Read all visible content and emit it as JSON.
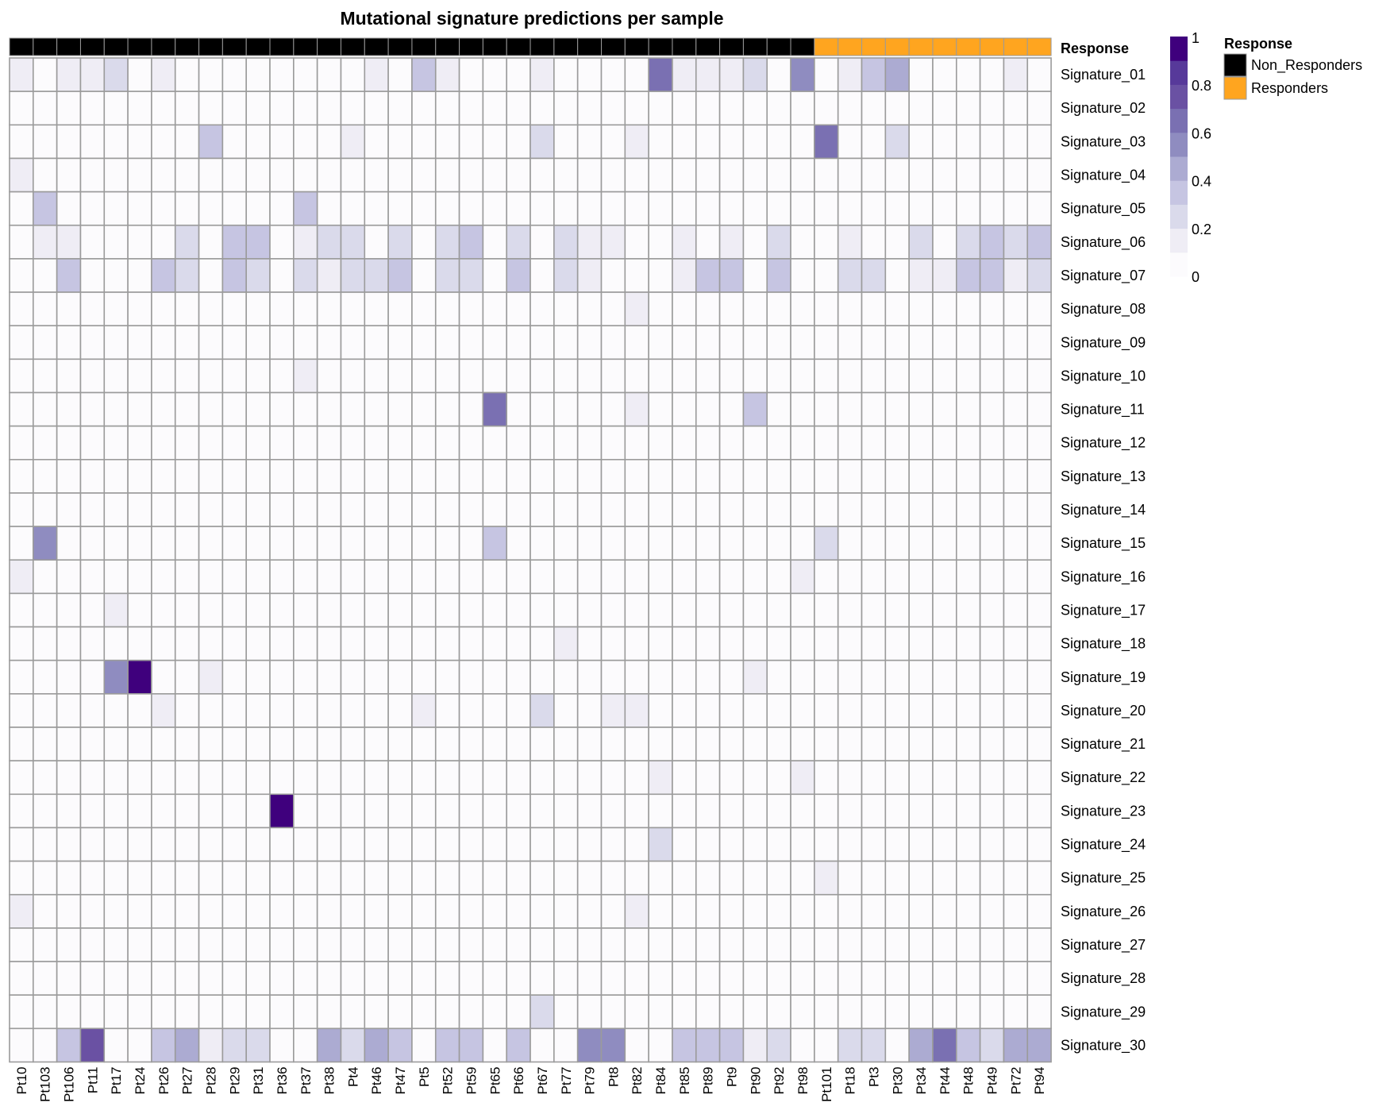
{
  "chart_data": {
    "type": "heatmap",
    "title": "Mutational signature predictions per sample",
    "annotation": {
      "label": "Response",
      "legend_title": "Response",
      "groups": [
        {
          "name": "Non_Responders",
          "color": "#000000"
        },
        {
          "name": "Responders",
          "color": "#FFA51F"
        }
      ],
      "assignment": [
        "Non_Responders",
        "Non_Responders",
        "Non_Responders",
        "Non_Responders",
        "Non_Responders",
        "Non_Responders",
        "Non_Responders",
        "Non_Responders",
        "Non_Responders",
        "Non_Responders",
        "Non_Responders",
        "Non_Responders",
        "Non_Responders",
        "Non_Responders",
        "Non_Responders",
        "Non_Responders",
        "Non_Responders",
        "Non_Responders",
        "Non_Responders",
        "Non_Responders",
        "Non_Responders",
        "Non_Responders",
        "Non_Responders",
        "Non_Responders",
        "Non_Responders",
        "Non_Responders",
        "Non_Responders",
        "Non_Responders",
        "Non_Responders",
        "Non_Responders",
        "Non_Responders",
        "Non_Responders",
        "Non_Responders",
        "Non_Responders",
        "Responders",
        "Responders",
        "Responders",
        "Responders",
        "Responders",
        "Responders",
        "Responders",
        "Responders",
        "Responders",
        "Responders"
      ]
    },
    "columns": [
      "Pt10",
      "Pt103",
      "Pt106",
      "Pt11",
      "Pt17",
      "Pt24",
      "Pt26",
      "Pt27",
      "Pt28",
      "Pt29",
      "Pt31",
      "Pt36",
      "Pt37",
      "Pt38",
      "Pt4",
      "Pt46",
      "Pt47",
      "Pt5",
      "Pt52",
      "Pt59",
      "Pt65",
      "Pt66",
      "Pt67",
      "Pt77",
      "Pt79",
      "Pt8",
      "Pt82",
      "Pt84",
      "Pt85",
      "Pt89",
      "Pt9",
      "Pt90",
      "Pt92",
      "Pt98",
      "Pt101",
      "Pt18",
      "Pt3",
      "Pt30",
      "Pt34",
      "Pt44",
      "Pt48",
      "Pt49",
      "Pt72",
      "Pt94"
    ],
    "rows": [
      "Signature_01",
      "Signature_02",
      "Signature_03",
      "Signature_04",
      "Signature_05",
      "Signature_06",
      "Signature_07",
      "Signature_08",
      "Signature_09",
      "Signature_10",
      "Signature_11",
      "Signature_12",
      "Signature_13",
      "Signature_14",
      "Signature_15",
      "Signature_16",
      "Signature_17",
      "Signature_18",
      "Signature_19",
      "Signature_20",
      "Signature_21",
      "Signature_22",
      "Signature_23",
      "Signature_24",
      "Signature_25",
      "Signature_26",
      "Signature_27",
      "Signature_28",
      "Signature_29",
      "Signature_30"
    ],
    "values": [
      [
        0.15,
        0,
        0.15,
        0.15,
        0.2,
        0,
        0.15,
        0,
        0,
        0,
        0,
        0,
        0,
        0,
        0,
        0.15,
        0,
        0.35,
        0.15,
        0,
        0,
        0,
        0.15,
        0,
        0,
        0,
        0,
        0.6,
        0.15,
        0.15,
        0.15,
        0.2,
        0,
        0.55,
        0,
        0.15,
        0.35,
        0.45,
        0,
        0,
        0,
        0,
        0.15,
        0
      ],
      [
        0,
        0,
        0,
        0,
        0,
        0,
        0,
        0,
        0,
        0,
        0,
        0,
        0,
        0,
        0,
        0,
        0,
        0,
        0,
        0,
        0,
        0,
        0,
        0,
        0,
        0,
        0,
        0,
        0,
        0,
        0,
        0,
        0,
        0,
        0,
        0,
        0,
        0,
        0,
        0,
        0,
        0,
        0,
        0
      ],
      [
        0,
        0,
        0,
        0,
        0,
        0,
        0,
        0,
        0.35,
        0,
        0,
        0,
        0,
        0,
        0.15,
        0,
        0,
        0,
        0,
        0,
        0,
        0,
        0.2,
        0,
        0,
        0,
        0.15,
        0,
        0,
        0,
        0,
        0,
        0,
        0,
        0.65,
        0,
        0,
        0.2,
        0,
        0,
        0,
        0,
        0,
        0
      ],
      [
        0.15,
        0,
        0,
        0,
        0,
        0,
        0,
        0,
        0,
        0,
        0,
        0,
        0,
        0,
        0,
        0,
        0,
        0,
        0,
        0,
        0,
        0,
        0,
        0,
        0,
        0,
        0,
        0,
        0,
        0,
        0,
        0,
        0,
        0,
        0,
        0,
        0,
        0,
        0,
        0,
        0,
        0,
        0,
        0
      ],
      [
        0,
        0.35,
        0,
        0,
        0,
        0,
        0,
        0,
        0,
        0,
        0,
        0,
        0.35,
        0,
        0,
        0,
        0,
        0,
        0,
        0,
        0,
        0,
        0,
        0,
        0,
        0,
        0,
        0,
        0,
        0,
        0,
        0,
        0,
        0,
        0,
        0,
        0,
        0,
        0,
        0,
        0,
        0,
        0,
        0
      ],
      [
        0,
        0.15,
        0.15,
        0,
        0,
        0,
        0,
        0.25,
        0,
        0.35,
        0.35,
        0,
        0.15,
        0.25,
        0.25,
        0,
        0.25,
        0,
        0.25,
        0.35,
        0,
        0.25,
        0,
        0.25,
        0.15,
        0.15,
        0,
        0,
        0.15,
        0,
        0.15,
        0,
        0.25,
        0,
        0,
        0.15,
        0,
        0,
        0.25,
        0,
        0.25,
        0.35,
        0.25,
        0.35
      ],
      [
        0,
        0,
        0.35,
        0,
        0,
        0,
        0.35,
        0.25,
        0,
        0.35,
        0.25,
        0,
        0.25,
        0.15,
        0.25,
        0.25,
        0.35,
        0,
        0.25,
        0.25,
        0,
        0.35,
        0,
        0.25,
        0.15,
        0,
        0,
        0,
        0.15,
        0.35,
        0.35,
        0,
        0.35,
        0,
        0,
        0.25,
        0.25,
        0,
        0.15,
        0.15,
        0.35,
        0.35,
        0.15,
        0.25
      ],
      [
        0,
        0,
        0,
        0,
        0,
        0,
        0,
        0,
        0,
        0,
        0,
        0,
        0,
        0,
        0,
        0,
        0,
        0,
        0,
        0,
        0,
        0,
        0,
        0,
        0,
        0,
        0.15,
        0,
        0,
        0,
        0,
        0,
        0,
        0,
        0,
        0,
        0,
        0,
        0,
        0,
        0,
        0,
        0,
        0
      ],
      [
        0,
        0,
        0,
        0,
        0,
        0,
        0,
        0,
        0,
        0,
        0,
        0,
        0,
        0,
        0,
        0,
        0,
        0,
        0,
        0,
        0,
        0,
        0,
        0,
        0,
        0,
        0,
        0,
        0,
        0,
        0,
        0,
        0,
        0,
        0,
        0,
        0,
        0,
        0,
        0,
        0,
        0,
        0,
        0
      ],
      [
        0,
        0,
        0,
        0,
        0,
        0,
        0,
        0,
        0,
        0,
        0,
        0,
        0.15,
        0,
        0,
        0,
        0,
        0,
        0,
        0,
        0,
        0,
        0,
        0,
        0,
        0,
        0,
        0,
        0,
        0,
        0,
        0,
        0,
        0,
        0,
        0,
        0,
        0,
        0,
        0,
        0,
        0,
        0,
        0
      ],
      [
        0,
        0,
        0,
        0,
        0,
        0,
        0,
        0,
        0,
        0,
        0,
        0,
        0,
        0,
        0,
        0,
        0,
        0,
        0,
        0,
        0.6,
        0,
        0,
        0,
        0,
        0,
        0.15,
        0,
        0,
        0,
        0,
        0.35,
        0,
        0,
        0,
        0,
        0,
        0,
        0,
        0,
        0,
        0,
        0,
        0
      ],
      [
        0,
        0,
        0,
        0,
        0,
        0,
        0,
        0,
        0,
        0,
        0,
        0,
        0,
        0,
        0,
        0,
        0,
        0,
        0,
        0,
        0,
        0,
        0,
        0,
        0,
        0,
        0,
        0,
        0,
        0,
        0,
        0,
        0,
        0,
        0,
        0,
        0,
        0,
        0,
        0,
        0,
        0,
        0,
        0
      ],
      [
        0,
        0,
        0,
        0,
        0,
        0,
        0,
        0,
        0,
        0,
        0,
        0,
        0,
        0,
        0,
        0,
        0,
        0,
        0,
        0,
        0,
        0,
        0,
        0,
        0,
        0,
        0,
        0,
        0,
        0,
        0,
        0,
        0,
        0,
        0,
        0,
        0,
        0,
        0,
        0,
        0,
        0,
        0,
        0
      ],
      [
        0,
        0,
        0,
        0,
        0,
        0,
        0,
        0,
        0,
        0,
        0,
        0,
        0,
        0,
        0,
        0,
        0,
        0,
        0,
        0,
        0,
        0,
        0,
        0,
        0,
        0,
        0,
        0,
        0,
        0,
        0,
        0,
        0,
        0,
        0,
        0,
        0,
        0,
        0,
        0,
        0,
        0,
        0,
        0
      ],
      [
        0,
        0.5,
        0,
        0,
        0,
        0,
        0,
        0,
        0,
        0,
        0,
        0,
        0,
        0,
        0,
        0,
        0,
        0,
        0,
        0,
        0.35,
        0,
        0,
        0,
        0,
        0,
        0,
        0,
        0,
        0,
        0,
        0,
        0,
        0,
        0.25,
        0,
        0,
        0,
        0,
        0,
        0,
        0,
        0,
        0
      ],
      [
        0.15,
        0,
        0,
        0,
        0,
        0,
        0,
        0,
        0,
        0,
        0,
        0,
        0,
        0,
        0,
        0,
        0,
        0,
        0,
        0,
        0,
        0,
        0,
        0,
        0,
        0,
        0,
        0,
        0,
        0,
        0,
        0,
        0,
        0.15,
        0,
        0,
        0,
        0,
        0,
        0,
        0,
        0,
        0,
        0
      ],
      [
        0,
        0,
        0,
        0,
        0.15,
        0,
        0,
        0,
        0,
        0,
        0,
        0,
        0,
        0,
        0,
        0,
        0,
        0,
        0,
        0,
        0,
        0,
        0,
        0,
        0,
        0,
        0,
        0,
        0,
        0,
        0,
        0,
        0,
        0,
        0,
        0,
        0,
        0,
        0,
        0,
        0,
        0,
        0,
        0
      ],
      [
        0,
        0,
        0,
        0,
        0,
        0,
        0,
        0,
        0,
        0,
        0,
        0,
        0,
        0,
        0,
        0,
        0,
        0,
        0,
        0,
        0,
        0,
        0,
        0.15,
        0,
        0,
        0,
        0,
        0,
        0,
        0,
        0,
        0,
        0,
        0,
        0,
        0,
        0,
        0,
        0,
        0,
        0,
        0,
        0
      ],
      [
        0,
        0,
        0,
        0,
        0.55,
        0.95,
        0,
        0,
        0.15,
        0,
        0,
        0,
        0,
        0,
        0,
        0,
        0,
        0,
        0,
        0,
        0,
        0,
        0,
        0,
        0,
        0,
        0,
        0,
        0,
        0,
        0,
        0.15,
        0,
        0,
        0,
        0,
        0,
        0,
        0,
        0,
        0,
        0,
        0,
        0
      ],
      [
        0,
        0,
        0,
        0,
        0,
        0,
        0.15,
        0,
        0,
        0,
        0,
        0,
        0,
        0,
        0,
        0,
        0,
        0.15,
        0,
        0,
        0,
        0,
        0.25,
        0,
        0,
        0.15,
        0.15,
        0,
        0,
        0,
        0,
        0,
        0,
        0,
        0,
        0,
        0,
        0,
        0,
        0,
        0,
        0,
        0,
        0
      ],
      [
        0,
        0,
        0,
        0,
        0,
        0,
        0,
        0,
        0,
        0,
        0,
        0,
        0,
        0,
        0,
        0,
        0,
        0,
        0,
        0,
        0,
        0,
        0,
        0,
        0,
        0,
        0,
        0,
        0,
        0,
        0,
        0,
        0,
        0,
        0,
        0,
        0,
        0,
        0,
        0,
        0,
        0,
        0,
        0
      ],
      [
        0,
        0,
        0,
        0,
        0,
        0,
        0,
        0,
        0,
        0,
        0,
        0,
        0,
        0,
        0,
        0,
        0,
        0,
        0,
        0,
        0,
        0,
        0,
        0,
        0,
        0,
        0,
        0.15,
        0,
        0,
        0,
        0,
        0,
        0.15,
        0,
        0,
        0,
        0,
        0,
        0,
        0,
        0,
        0,
        0
      ],
      [
        0,
        0,
        0,
        0,
        0,
        0,
        0,
        0,
        0,
        0,
        0,
        0.95,
        0,
        0,
        0,
        0,
        0,
        0,
        0,
        0,
        0,
        0,
        0,
        0,
        0,
        0,
        0,
        0,
        0,
        0,
        0,
        0,
        0,
        0,
        0,
        0,
        0,
        0,
        0,
        0,
        0,
        0,
        0,
        0
      ],
      [
        0,
        0,
        0,
        0,
        0,
        0,
        0,
        0,
        0,
        0,
        0,
        0,
        0,
        0,
        0,
        0,
        0,
        0,
        0,
        0,
        0,
        0,
        0,
        0,
        0,
        0,
        0,
        0.2,
        0,
        0,
        0,
        0,
        0,
        0,
        0,
        0,
        0,
        0,
        0,
        0,
        0,
        0,
        0,
        0
      ],
      [
        0,
        0,
        0,
        0,
        0,
        0,
        0,
        0,
        0,
        0,
        0,
        0,
        0,
        0,
        0,
        0,
        0,
        0,
        0,
        0,
        0,
        0,
        0,
        0,
        0,
        0,
        0,
        0,
        0,
        0,
        0,
        0,
        0,
        0,
        0.15,
        0,
        0,
        0,
        0,
        0,
        0,
        0,
        0,
        0
      ],
      [
        0.15,
        0,
        0,
        0,
        0,
        0,
        0,
        0,
        0,
        0,
        0,
        0,
        0,
        0,
        0,
        0,
        0,
        0,
        0,
        0,
        0,
        0,
        0,
        0,
        0,
        0,
        0.15,
        0,
        0,
        0,
        0,
        0,
        0,
        0,
        0,
        0,
        0,
        0,
        0,
        0,
        0,
        0,
        0,
        0
      ],
      [
        0,
        0,
        0,
        0,
        0,
        0,
        0,
        0,
        0,
        0,
        0,
        0,
        0,
        0,
        0,
        0,
        0,
        0,
        0,
        0,
        0,
        0,
        0,
        0,
        0,
        0,
        0,
        0,
        0,
        0,
        0,
        0,
        0,
        0,
        0,
        0,
        0,
        0,
        0,
        0,
        0,
        0,
        0,
        0
      ],
      [
        0,
        0,
        0,
        0,
        0,
        0,
        0,
        0,
        0,
        0,
        0,
        0,
        0,
        0,
        0,
        0,
        0,
        0,
        0,
        0,
        0,
        0,
        0,
        0,
        0,
        0,
        0,
        0,
        0,
        0,
        0,
        0,
        0,
        0,
        0,
        0,
        0,
        0,
        0,
        0,
        0,
        0,
        0,
        0
      ],
      [
        0,
        0,
        0,
        0,
        0,
        0,
        0,
        0,
        0,
        0,
        0,
        0,
        0,
        0,
        0,
        0,
        0,
        0,
        0,
        0,
        0,
        0,
        0.2,
        0,
        0,
        0,
        0,
        0,
        0,
        0,
        0,
        0,
        0,
        0,
        0,
        0,
        0,
        0,
        0,
        0,
        0,
        0,
        0,
        0
      ],
      [
        0,
        0,
        0.35,
        0.75,
        0,
        0,
        0.35,
        0.45,
        0.15,
        0.2,
        0.2,
        0,
        0,
        0.45,
        0.2,
        0.45,
        0.35,
        0,
        0.35,
        0.35,
        0,
        0.35,
        0,
        0,
        0.55,
        0.55,
        0,
        0,
        0.35,
        0.35,
        0.35,
        0.15,
        0.2,
        0,
        0,
        0.2,
        0.2,
        0,
        0.45,
        0.6,
        0.35,
        0.2,
        0.45,
        0.45
      ]
    ],
    "value_range": [
      0,
      1
    ],
    "colorbar": {
      "ticks": [
        0,
        0.2,
        0.4,
        0.6,
        0.8,
        1
      ],
      "tick_labels": [
        "0",
        "0.2",
        "0.4",
        "0.6",
        "0.8",
        "1"
      ],
      "colors": [
        "#FCFBFD",
        "#EFEDF5",
        "#DADAEB",
        "#C6C5E2",
        "#ACABD2",
        "#8F8CC0",
        "#7A70B2",
        "#6A51A3",
        "#57399A",
        "#3F007D"
      ]
    },
    "grid_color": "#9B9B9B",
    "legend_placement": "right"
  }
}
